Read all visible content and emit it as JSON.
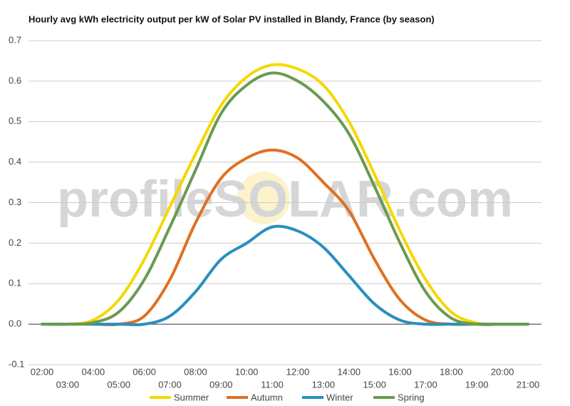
{
  "chart_data": {
    "type": "line",
    "title": "Hourly avg kWh electricity output per kW of Solar PV installed in Blandy, France (by season)",
    "watermark": "profileSOLAR.com",
    "categories": [
      "02:00",
      "03:00",
      "04:00",
      "05:00",
      "06:00",
      "07:00",
      "08:00",
      "09:00",
      "10:00",
      "11:00",
      "12:00",
      "13:00",
      "14:00",
      "15:00",
      "16:00",
      "17:00",
      "18:00",
      "19:00",
      "20:00",
      "21:00"
    ],
    "ylim": [
      -0.1,
      0.7
    ],
    "yticks": [
      -0.1,
      {
        "value": 0,
        "label": "0.0"
      },
      0.1,
      0.2,
      0.3,
      0.4,
      0.5,
      0.6,
      0.7
    ],
    "grid": true,
    "series": [
      {
        "name": "Summer",
        "color": "#f5d800",
        "values": [
          0,
          0,
          0.01,
          0.06,
          0.16,
          0.29,
          0.42,
          0.54,
          0.61,
          0.64,
          0.63,
          0.59,
          0.5,
          0.37,
          0.23,
          0.11,
          0.03,
          0.003,
          0,
          0
        ]
      },
      {
        "name": "Autumn",
        "color": "#e07020",
        "values": [
          0,
          0,
          0,
          0,
          0.02,
          0.11,
          0.25,
          0.36,
          0.41,
          0.43,
          0.41,
          0.35,
          0.28,
          0.16,
          0.06,
          0.01,
          0,
          0,
          0,
          0
        ]
      },
      {
        "name": "Winter",
        "color": "#2a8fbd",
        "values": [
          0,
          0,
          0,
          0,
          0,
          0.02,
          0.08,
          0.16,
          0.2,
          0.24,
          0.23,
          0.19,
          0.12,
          0.05,
          0.01,
          0,
          0,
          0,
          0,
          0
        ]
      },
      {
        "name": "Spring",
        "color": "#6a9a50",
        "values": [
          0,
          0,
          0.004,
          0.03,
          0.11,
          0.24,
          0.38,
          0.52,
          0.59,
          0.62,
          0.6,
          0.55,
          0.47,
          0.34,
          0.2,
          0.08,
          0.015,
          0,
          0,
          0
        ]
      }
    ]
  }
}
